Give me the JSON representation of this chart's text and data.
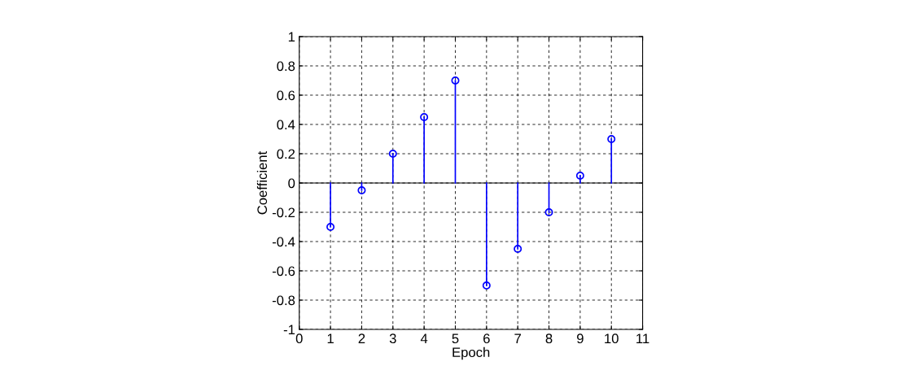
{
  "chart_data": {
    "type": "lollipop",
    "xlabel": "Epoch",
    "ylabel": "Coefficient",
    "x": [
      1,
      2,
      3,
      4,
      5,
      6,
      7,
      8,
      9,
      10
    ],
    "series": [
      {
        "color": "#0000ff",
        "values": [
          -0.3,
          -0.05,
          0.2,
          0.45,
          0.7,
          -0.7,
          -0.45,
          -0.2,
          0.05,
          0.3
        ]
      }
    ],
    "xlim": [
      0,
      11
    ],
    "xticks": [
      0,
      1,
      2,
      3,
      4,
      5,
      6,
      7,
      8,
      9,
      10,
      11
    ],
    "ylim": [
      -1,
      1
    ],
    "yticks": [
      -1,
      -0.8,
      -0.6,
      -0.4,
      -0.2,
      0,
      0.2,
      0.4,
      0.6,
      0.8,
      1
    ],
    "grid": true,
    "marker": "circle",
    "line_style": "solid"
  }
}
